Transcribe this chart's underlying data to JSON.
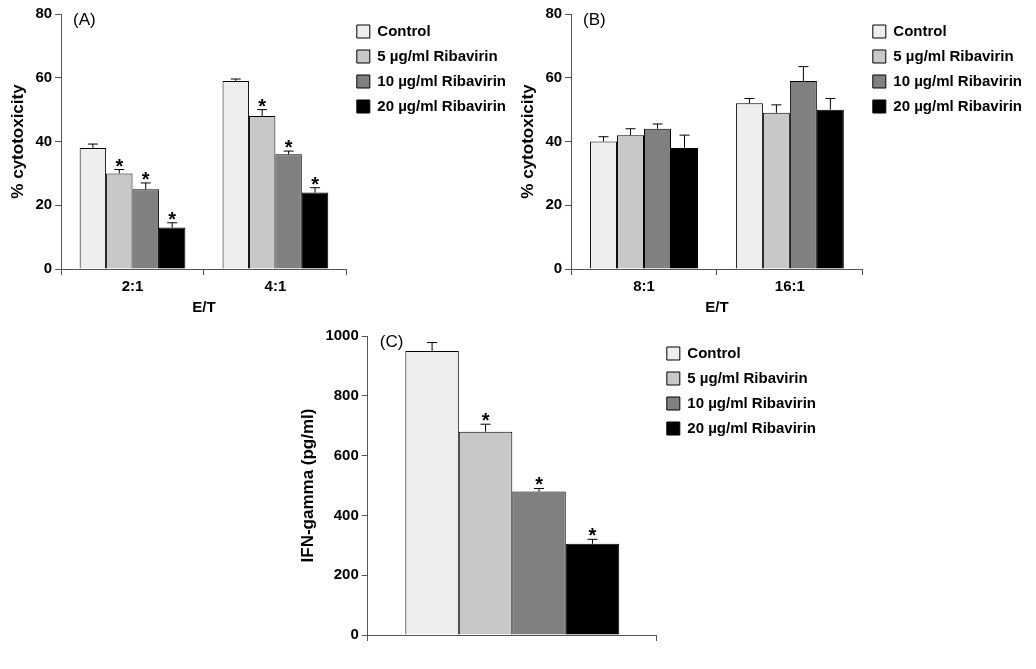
{
  "chart_data": [
    {
      "type": "bar",
      "title": "(A)",
      "xlabel": "E/T",
      "ylabel": "% cytotoxicity",
      "categories": [
        "2:1",
        "4:1"
      ],
      "ylim": [
        0,
        80
      ],
      "yticks": [
        0,
        20,
        40,
        60,
        80
      ],
      "grid": false,
      "legend": "right",
      "series": [
        {
          "name": "Control",
          "color": "#eeeeee",
          "values": [
            38,
            59
          ],
          "errors": [
            1.2,
            0.6
          ]
        },
        {
          "name": "5 µg/ml Ribavirin",
          "color": "#c8c8c8",
          "values": [
            30,
            48
          ],
          "errors": [
            1.2,
            2
          ],
          "value_labels": [
            "*",
            "*"
          ]
        },
        {
          "name": "10 µg/ml Ribavirin",
          "color": "#808080",
          "values": [
            25,
            36
          ],
          "errors": [
            2,
            1
          ],
          "value_labels": [
            "*",
            "*"
          ]
        },
        {
          "name": "20 µg/ml Ribavirin",
          "color": "#000000",
          "values": [
            13,
            24
          ],
          "errors": [
            1.5,
            1.5
          ],
          "value_labels": [
            "*",
            "*"
          ]
        }
      ]
    },
    {
      "type": "bar",
      "title": "(B)",
      "xlabel": "E/T",
      "ylabel": "% cytotoxicity",
      "categories": [
        "8:1",
        "16:1"
      ],
      "ylim": [
        0,
        80
      ],
      "yticks": [
        0,
        20,
        40,
        60,
        80
      ],
      "grid": false,
      "legend": "right",
      "series": [
        {
          "name": "Control",
          "color": "#eeeeee",
          "values": [
            40,
            52
          ],
          "errors": [
            1.5,
            1.5
          ]
        },
        {
          "name": "5 µg/ml Ribavirin",
          "color": "#c8c8c8",
          "values": [
            42,
            49
          ],
          "errors": [
            2,
            2.5
          ]
        },
        {
          "name": "10 µg/ml Ribavirin",
          "color": "#808080",
          "values": [
            44,
            59
          ],
          "errors": [
            1.5,
            4.5
          ]
        },
        {
          "name": "20 µg/ml Ribavirin",
          "color": "#000000",
          "values": [
            38,
            50
          ],
          "errors": [
            4,
            3.5
          ]
        }
      ]
    },
    {
      "type": "bar",
      "title": "(C)",
      "ylabel": "IFN-gamma (pg/ml)",
      "categories": [
        null
      ],
      "ylim": [
        0,
        1000
      ],
      "yticks": [
        0,
        200,
        400,
        600,
        800,
        1000
      ],
      "grid": false,
      "legend": "right",
      "series": [
        {
          "name": "Control",
          "color": "#eeeeee",
          "values": [
            950
          ],
          "errors": [
            28
          ]
        },
        {
          "name": "5 µg/ml Ribavirin",
          "color": "#c8c8c8",
          "values": [
            680
          ],
          "errors": [
            25
          ],
          "value_labels": [
            "*"
          ]
        },
        {
          "name": "10 µg/ml Ribavirin",
          "color": "#808080",
          "values": [
            480
          ],
          "errors": [
            10
          ],
          "value_labels": [
            "*"
          ]
        },
        {
          "name": "20 µg/ml Ribavirin",
          "color": "#000000",
          "values": [
            305
          ],
          "errors": [
            15
          ],
          "value_labels": [
            "*"
          ]
        }
      ]
    }
  ]
}
